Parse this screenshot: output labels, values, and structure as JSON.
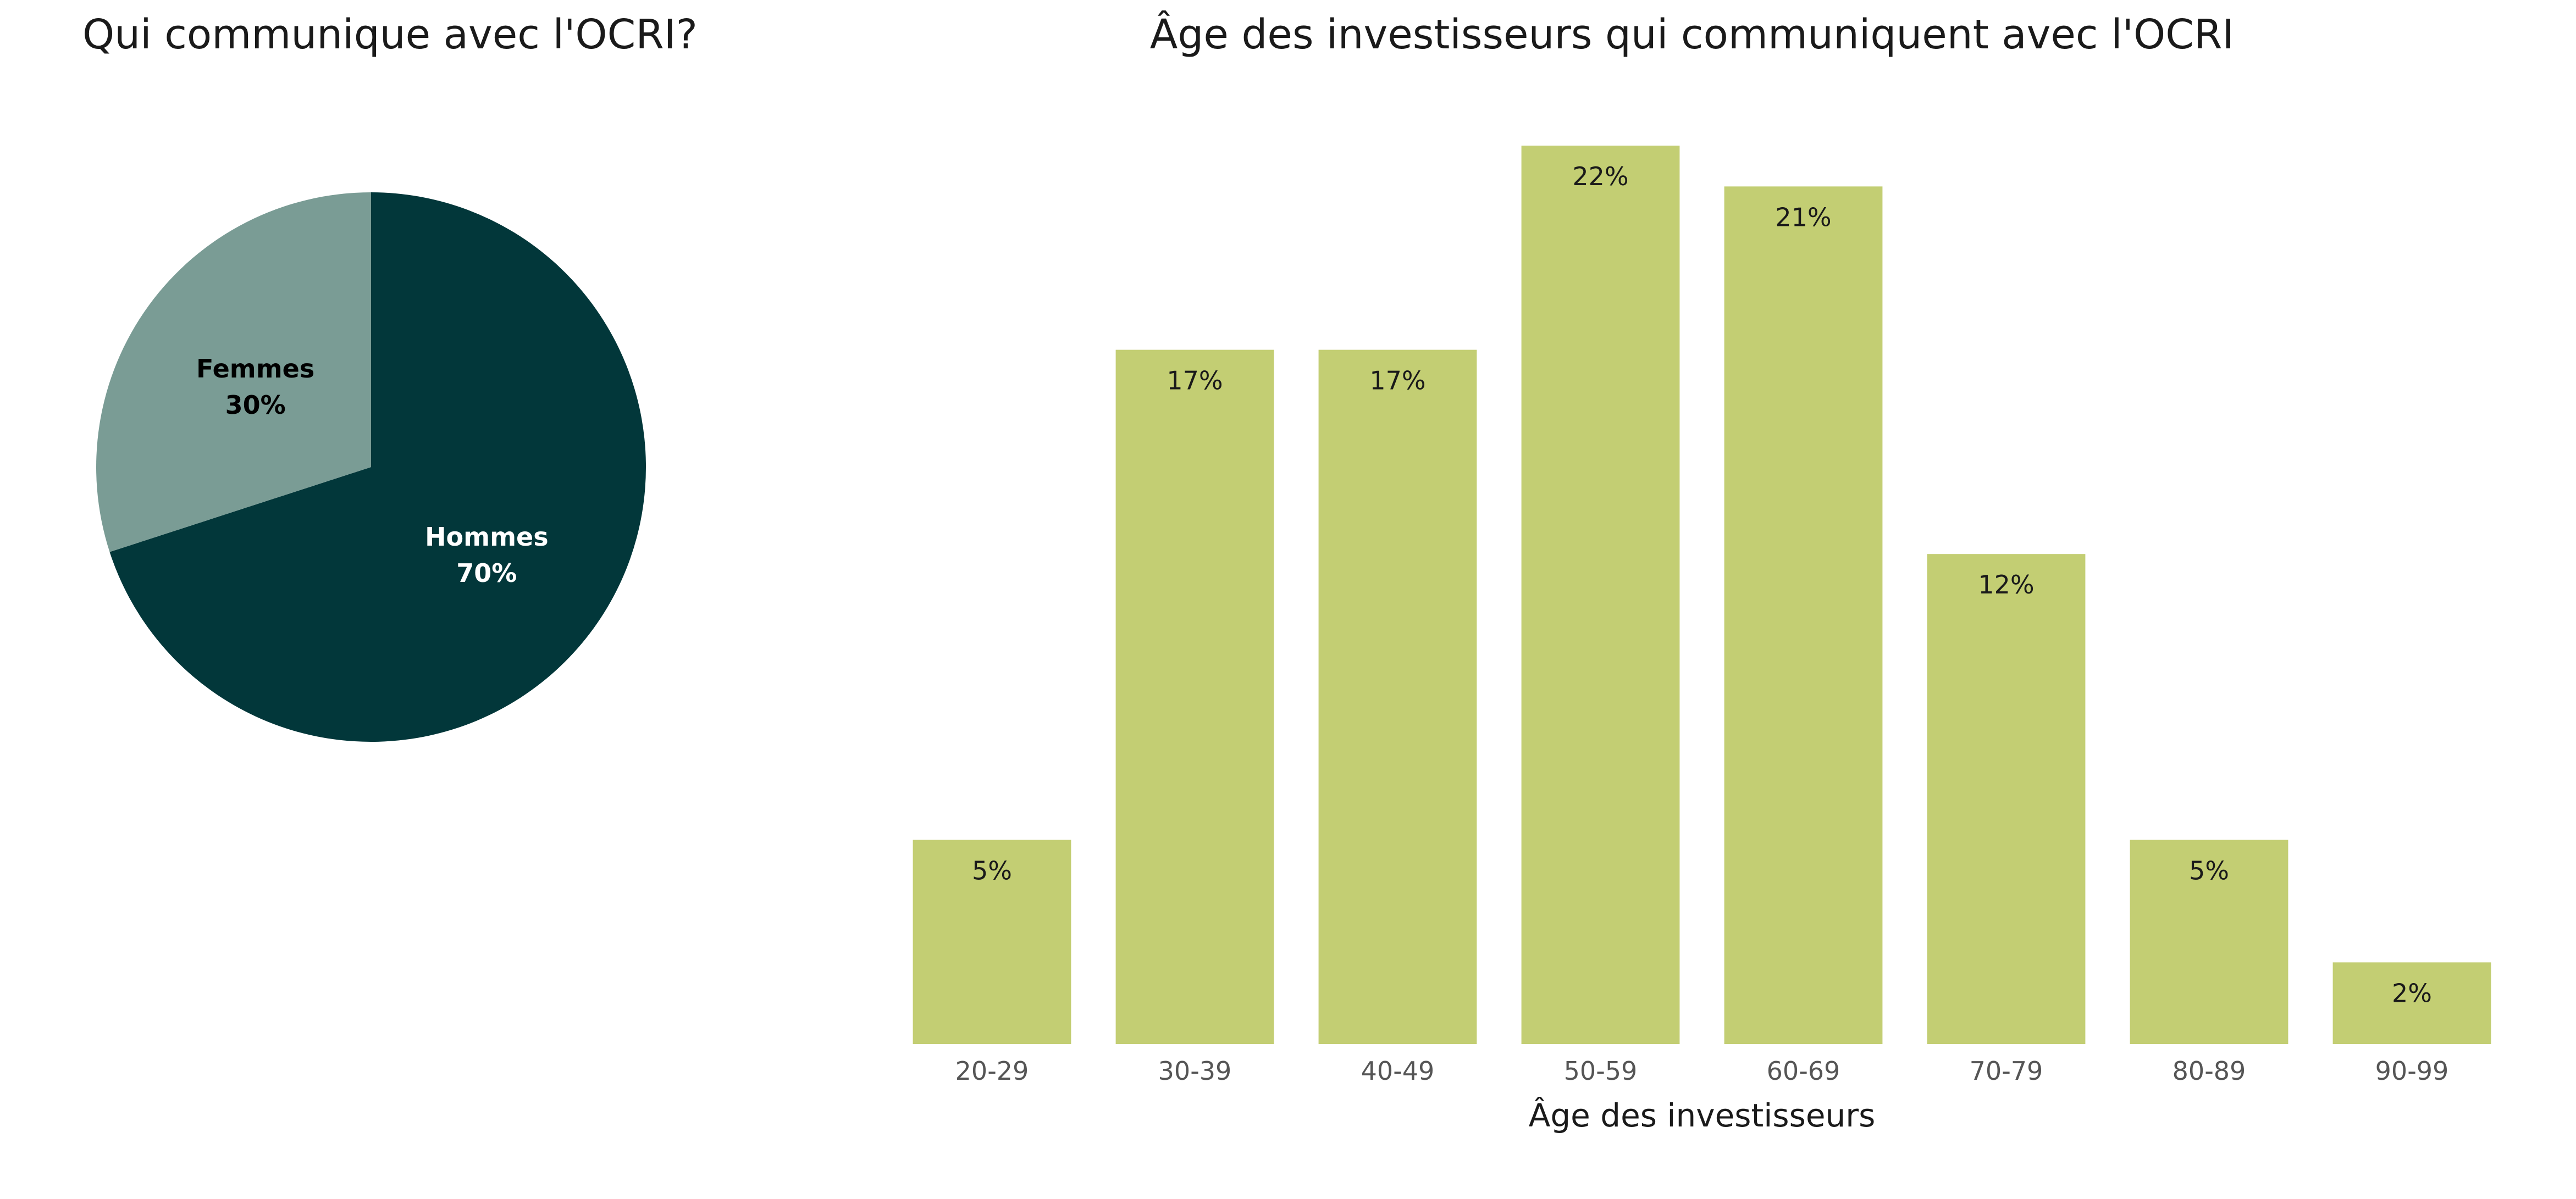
{
  "chart_data": [
    {
      "type": "pie",
      "title": "Qui communique avec l'OCRI?",
      "start_angle_deg": 0,
      "direction": "clockwise",
      "slices": [
        {
          "label": "Hommes",
          "value": 70,
          "value_label": "70%",
          "color": "#02373A",
          "label_color": "#ffffff"
        },
        {
          "label": "Femmes",
          "value": 30,
          "value_label": "30%",
          "color": "#7A9C95",
          "label_color": "#000000"
        }
      ]
    },
    {
      "type": "bar",
      "title": "Âge des investisseurs qui communiquent avec l'OCRI",
      "xlabel": "Âge des investisseurs",
      "ylabel": "",
      "categories": [
        "20-29",
        "30-39",
        "40-49",
        "50-59",
        "60-69",
        "70-79",
        "80-89",
        "90-99"
      ],
      "values": [
        5,
        17,
        17,
        22,
        21,
        12,
        5,
        2
      ],
      "value_labels": [
        "5%",
        "17%",
        "17%",
        "22%",
        "21%",
        "12%",
        "5%",
        "2%"
      ],
      "value_unit": "%",
      "ylim": [
        0,
        22
      ],
      "bar_color": "#C3CE73",
      "grid": false,
      "y_axis_visible": false
    }
  ]
}
